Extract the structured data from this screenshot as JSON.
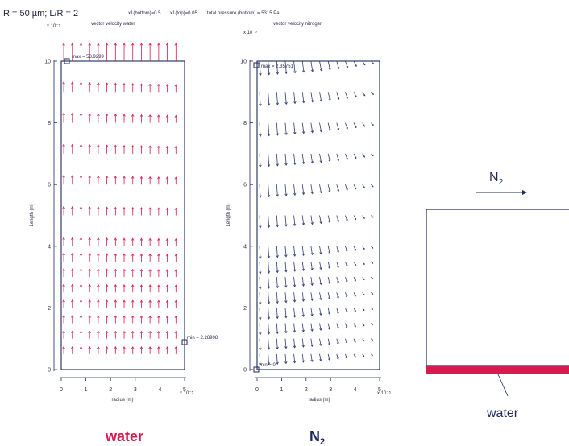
{
  "header": {
    "params": "R = 50 µm; L/R = 2",
    "x1_bottom": "x1(bottom)=0.5",
    "x1_top": "x1(top)=0.05",
    "total_pressure": "total pressure (bottom) = 5315 Pa"
  },
  "colors": {
    "water": "#d81b4f",
    "nitrogen": "#2f3a74",
    "axis": "#1f2a5c"
  },
  "chart_data": [
    {
      "type": "quiver",
      "title": "vector velocity water",
      "xlabel": "radius (m)",
      "ylabel": "Length (m)",
      "x_ticks": [
        "0",
        "1",
        "2",
        "3",
        "4",
        "5"
      ],
      "y_ticks": [
        "0",
        "2",
        "4",
        "6",
        "8",
        "10"
      ],
      "x_exponent": "x 10⁻⁵",
      "y_exponent": "x 10⁻⁵",
      "xlim": [
        0,
        5
      ],
      "ylim": [
        0,
        10
      ],
      "color": "#d81b4f",
      "flow": "upward",
      "rows_y": [
        0.5,
        1.0,
        1.5,
        2.0,
        2.5,
        3.0,
        3.5,
        4.0,
        5.0,
        6.0,
        7.0,
        8.0,
        9.0,
        10.0
      ],
      "columns_x": [
        0.1,
        0.45,
        0.8,
        1.15,
        1.5,
        1.85,
        2.2,
        2.55,
        2.9,
        3.25,
        3.6,
        3.95,
        4.3,
        4.65
      ],
      "max_label": "max = 58.9299",
      "min_label": "min = 2.28908",
      "max_point": [
        0.25,
        10
      ],
      "min_point": [
        5,
        0.9
      ]
    },
    {
      "type": "quiver",
      "title": "vector velocity nitrogen",
      "xlabel": "radius (m)",
      "ylabel": "Length (m)",
      "x_ticks": [
        "0",
        "1",
        "2",
        "3",
        "4",
        "5"
      ],
      "y_ticks": [
        "0",
        "2",
        "4",
        "6",
        "8",
        "10"
      ],
      "x_exponent": "x 10⁻⁵",
      "y_exponent": "x 10⁻⁵",
      "xlim": [
        0,
        5
      ],
      "ylim": [
        0,
        10
      ],
      "color": "#2f3a74",
      "flow": "downward-outward",
      "rows_y": [
        0.5,
        1.0,
        1.5,
        2.0,
        2.5,
        3.0,
        3.5,
        4.0,
        5.0,
        6.0,
        7.0,
        8.0,
        9.0,
        10.0
      ],
      "columns_x": [
        0.1,
        0.45,
        0.8,
        1.15,
        1.5,
        1.85,
        2.2,
        2.55,
        2.9,
        3.25,
        3.6,
        3.95,
        4.3,
        4.65
      ],
      "max_label": "max = 2.35751",
      "min_label": "min = 0",
      "max_point": [
        0,
        9.8
      ],
      "min_point": [
        0,
        0
      ]
    }
  ],
  "captions": {
    "water": "water",
    "n2_main": "N",
    "n2_sub": "2"
  },
  "diagram": {
    "n2_main": "N",
    "n2_sub": "2",
    "water_label": "water"
  }
}
